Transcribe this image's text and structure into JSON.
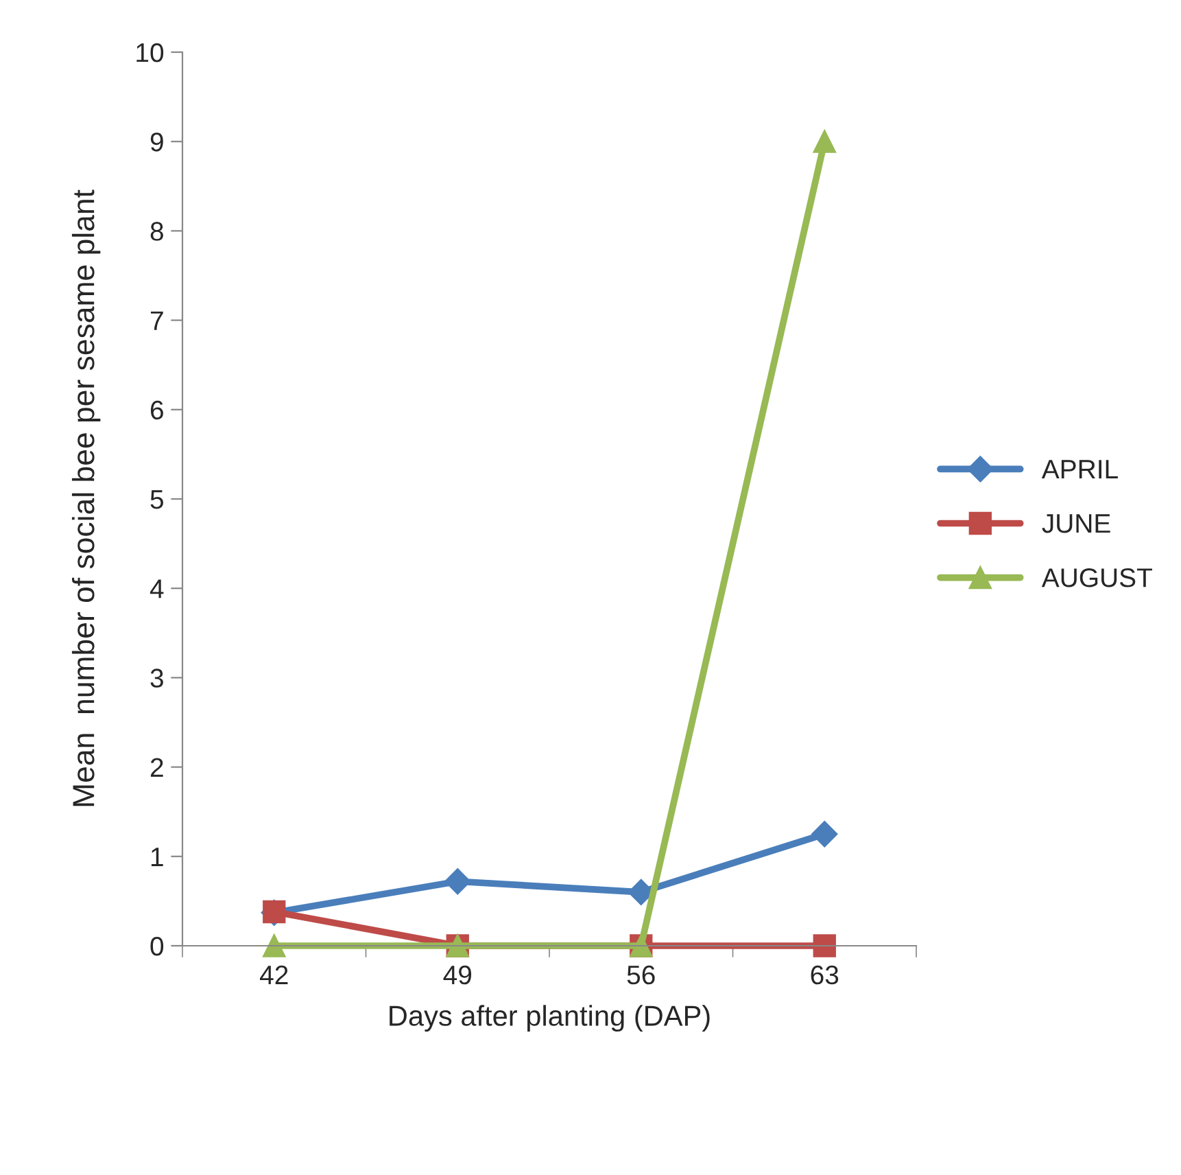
{
  "chart_data": {
    "type": "line",
    "xlabel": "Days after planting (DAP)",
    "ylabel": "Mean  number of social bee per sesame plant",
    "categories": [
      "42",
      "49",
      "56",
      "63"
    ],
    "series": [
      {
        "name": "APRIL",
        "color": "#4a7ebb",
        "marker": "diamond",
        "values": [
          0.37,
          0.72,
          0.6,
          1.25
        ]
      },
      {
        "name": "JUNE",
        "color": "#be4b48",
        "marker": "square",
        "values": [
          0.38,
          0,
          0,
          0
        ]
      },
      {
        "name": "AUGUST",
        "color": "#98b954",
        "marker": "triangle",
        "values": [
          0,
          0,
          0,
          9
        ]
      }
    ],
    "ylim": [
      0,
      10
    ],
    "yticks": [
      0,
      1,
      2,
      3,
      4,
      5,
      6,
      7,
      8,
      9,
      10
    ],
    "grid": false,
    "legend": "right"
  }
}
